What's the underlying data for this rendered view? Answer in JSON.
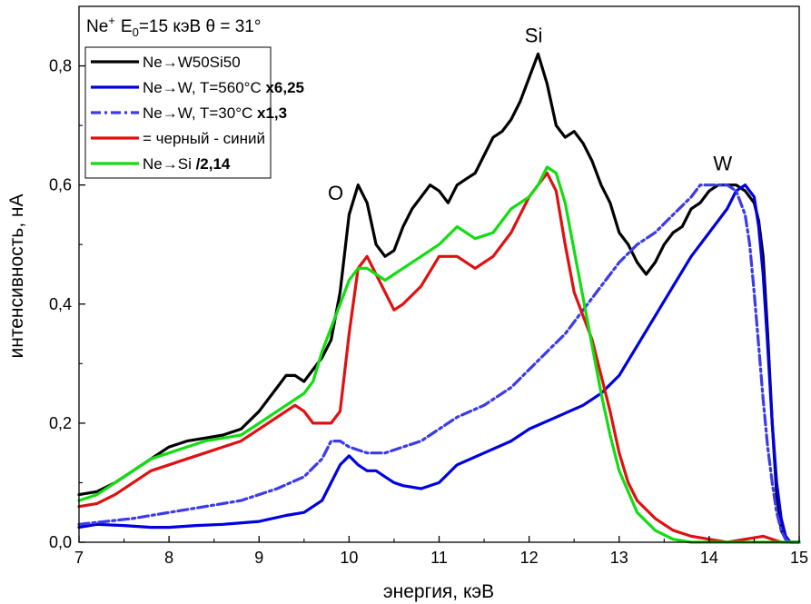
{
  "chart_data": {
    "type": "line",
    "title_parts": {
      "ion": "Ne",
      "ion_sup": "+",
      "e_prefix": "E",
      "e_sub": "0",
      "rest": "=15 кэВ θ = 31°"
    },
    "xlabel": "энергия, кэВ",
    "ylabel": "интенсивность, нА",
    "xlim": [
      7,
      15
    ],
    "ylim": [
      0,
      0.9
    ],
    "xticks": [
      7,
      8,
      9,
      10,
      11,
      12,
      13,
      14,
      15
    ],
    "yticks": [
      0.0,
      0.2,
      0.4,
      0.6,
      0.8
    ],
    "ytick_labels": [
      "0,0",
      "0,2",
      "0,4",
      "0,6",
      "0,8"
    ],
    "grid": false,
    "legend_position": "top-left",
    "annotations": [
      {
        "text": "Si",
        "x": 12.05,
        "y": 0.84
      },
      {
        "text": "O",
        "x": 9.85,
        "y": 0.575
      },
      {
        "text": "W",
        "x": 14.15,
        "y": 0.625
      }
    ],
    "series": [
      {
        "name": "Ne→W50Si50",
        "name_bold": "",
        "color": "#000000",
        "dash": "solid",
        "x": [
          7.0,
          7.2,
          7.4,
          7.6,
          7.8,
          8.0,
          8.2,
          8.4,
          8.6,
          8.8,
          9.0,
          9.1,
          9.2,
          9.3,
          9.4,
          9.5,
          9.6,
          9.7,
          9.8,
          9.9,
          10.0,
          10.1,
          10.2,
          10.3,
          10.4,
          10.5,
          10.6,
          10.7,
          10.8,
          10.9,
          11.0,
          11.1,
          11.2,
          11.3,
          11.4,
          11.5,
          11.6,
          11.7,
          11.8,
          11.9,
          12.0,
          12.1,
          12.2,
          12.3,
          12.4,
          12.5,
          12.6,
          12.7,
          12.8,
          12.9,
          13.0,
          13.1,
          13.2,
          13.3,
          13.4,
          13.5,
          13.6,
          13.7,
          13.8,
          13.9,
          14.0,
          14.1,
          14.2,
          14.3,
          14.4,
          14.5,
          14.55,
          14.6,
          14.65,
          14.7,
          14.75,
          14.8,
          14.85,
          14.9,
          15.0
        ],
        "y": [
          0.08,
          0.085,
          0.1,
          0.12,
          0.14,
          0.16,
          0.17,
          0.175,
          0.18,
          0.19,
          0.22,
          0.24,
          0.26,
          0.28,
          0.28,
          0.27,
          0.29,
          0.31,
          0.34,
          0.42,
          0.55,
          0.6,
          0.57,
          0.5,
          0.48,
          0.49,
          0.53,
          0.56,
          0.58,
          0.6,
          0.59,
          0.57,
          0.6,
          0.61,
          0.62,
          0.65,
          0.68,
          0.69,
          0.71,
          0.74,
          0.78,
          0.82,
          0.77,
          0.7,
          0.68,
          0.69,
          0.67,
          0.64,
          0.6,
          0.57,
          0.52,
          0.5,
          0.47,
          0.45,
          0.47,
          0.5,
          0.52,
          0.53,
          0.56,
          0.57,
          0.59,
          0.6,
          0.6,
          0.6,
          0.59,
          0.57,
          0.54,
          0.48,
          0.35,
          0.2,
          0.08,
          0.02,
          0.005,
          0.0,
          0.0
        ]
      },
      {
        "name": "Ne→W, T=560°C ",
        "name_bold": "x6,25",
        "color": "#0000e0",
        "dash": "solid",
        "x": [
          7.0,
          7.2,
          7.5,
          7.8,
          8.0,
          8.3,
          8.6,
          9.0,
          9.3,
          9.5,
          9.7,
          9.8,
          9.9,
          10.0,
          10.1,
          10.2,
          10.3,
          10.4,
          10.5,
          10.6,
          10.8,
          11.0,
          11.2,
          11.5,
          11.8,
          12.0,
          12.3,
          12.6,
          12.8,
          13.0,
          13.2,
          13.4,
          13.6,
          13.8,
          14.0,
          14.2,
          14.3,
          14.4,
          14.5,
          14.55,
          14.6,
          14.65,
          14.7,
          14.75,
          14.8,
          14.85,
          14.9,
          15.0
        ],
        "y": [
          0.025,
          0.03,
          0.028,
          0.025,
          0.025,
          0.028,
          0.03,
          0.035,
          0.045,
          0.05,
          0.07,
          0.1,
          0.13,
          0.145,
          0.13,
          0.12,
          0.12,
          0.11,
          0.1,
          0.095,
          0.09,
          0.1,
          0.13,
          0.15,
          0.17,
          0.19,
          0.21,
          0.23,
          0.25,
          0.28,
          0.33,
          0.38,
          0.43,
          0.48,
          0.52,
          0.56,
          0.59,
          0.6,
          0.58,
          0.53,
          0.45,
          0.33,
          0.2,
          0.1,
          0.04,
          0.01,
          0.0,
          0.0
        ]
      },
      {
        "name": "Ne→W, T=30°C ",
        "name_bold": "x1,3",
        "color": "#3b3be8",
        "dash": "dashdot",
        "x": [
          7.0,
          7.3,
          7.6,
          8.0,
          8.4,
          8.8,
          9.2,
          9.5,
          9.7,
          9.8,
          9.9,
          10.0,
          10.2,
          10.4,
          10.6,
          10.8,
          11.0,
          11.2,
          11.5,
          11.8,
          12.0,
          12.2,
          12.4,
          12.6,
          12.8,
          13.0,
          13.2,
          13.4,
          13.6,
          13.8,
          13.9,
          14.0,
          14.1,
          14.2,
          14.3,
          14.4,
          14.45,
          14.5,
          14.55,
          14.6,
          14.65,
          14.7,
          14.75,
          14.8,
          14.85,
          14.9,
          15.0
        ],
        "y": [
          0.03,
          0.035,
          0.04,
          0.05,
          0.06,
          0.07,
          0.09,
          0.11,
          0.14,
          0.17,
          0.17,
          0.16,
          0.15,
          0.15,
          0.16,
          0.17,
          0.19,
          0.21,
          0.23,
          0.26,
          0.29,
          0.32,
          0.35,
          0.39,
          0.43,
          0.47,
          0.5,
          0.52,
          0.55,
          0.58,
          0.6,
          0.6,
          0.6,
          0.6,
          0.59,
          0.55,
          0.5,
          0.42,
          0.33,
          0.24,
          0.16,
          0.1,
          0.05,
          0.02,
          0.005,
          0.0,
          0.0
        ]
      },
      {
        "name": "= черный - синий",
        "name_bold": "",
        "color": "#e01010",
        "dash": "solid",
        "x": [
          7.0,
          7.2,
          7.4,
          7.6,
          7.8,
          8.0,
          8.2,
          8.4,
          8.6,
          8.8,
          9.0,
          9.2,
          9.4,
          9.5,
          9.6,
          9.7,
          9.8,
          9.9,
          10.0,
          10.1,
          10.2,
          10.3,
          10.4,
          10.5,
          10.6,
          10.8,
          11.0,
          11.2,
          11.4,
          11.6,
          11.8,
          12.0,
          12.1,
          12.2,
          12.3,
          12.4,
          12.5,
          12.6,
          12.7,
          12.8,
          12.9,
          13.0,
          13.1,
          13.2,
          13.4,
          13.6,
          13.8,
          14.0,
          14.2,
          14.4,
          14.6,
          14.8,
          15.0
        ],
        "y": [
          0.06,
          0.065,
          0.08,
          0.1,
          0.12,
          0.13,
          0.14,
          0.15,
          0.16,
          0.17,
          0.19,
          0.21,
          0.23,
          0.22,
          0.2,
          0.2,
          0.2,
          0.22,
          0.35,
          0.46,
          0.48,
          0.45,
          0.42,
          0.39,
          0.4,
          0.43,
          0.48,
          0.48,
          0.46,
          0.48,
          0.52,
          0.58,
          0.6,
          0.62,
          0.59,
          0.5,
          0.42,
          0.38,
          0.34,
          0.28,
          0.22,
          0.15,
          0.1,
          0.07,
          0.04,
          0.02,
          0.01,
          0.005,
          0.0,
          0.005,
          0.01,
          0.0,
          0.0
        ]
      },
      {
        "name": "Ne→Si ",
        "name_bold": "/2,14",
        "color": "#11dd11",
        "dash": "solid",
        "x": [
          7.0,
          7.2,
          7.4,
          7.6,
          7.8,
          8.0,
          8.2,
          8.4,
          8.6,
          8.8,
          9.0,
          9.2,
          9.4,
          9.5,
          9.6,
          9.7,
          9.8,
          9.9,
          10.0,
          10.1,
          10.2,
          10.3,
          10.4,
          10.5,
          10.6,
          10.8,
          11.0,
          11.2,
          11.4,
          11.6,
          11.8,
          12.0,
          12.1,
          12.2,
          12.3,
          12.4,
          12.5,
          12.6,
          12.7,
          12.8,
          12.9,
          13.0,
          13.2,
          13.4,
          13.6,
          13.8,
          14.0,
          14.5,
          15.0
        ],
        "y": [
          0.07,
          0.08,
          0.1,
          0.12,
          0.14,
          0.15,
          0.16,
          0.17,
          0.175,
          0.18,
          0.2,
          0.22,
          0.24,
          0.25,
          0.27,
          0.32,
          0.36,
          0.4,
          0.44,
          0.46,
          0.46,
          0.45,
          0.44,
          0.45,
          0.46,
          0.48,
          0.5,
          0.53,
          0.51,
          0.52,
          0.56,
          0.58,
          0.6,
          0.63,
          0.62,
          0.57,
          0.49,
          0.41,
          0.33,
          0.25,
          0.18,
          0.12,
          0.05,
          0.02,
          0.005,
          0.0,
          0.0,
          0.0,
          0.0
        ]
      }
    ]
  }
}
